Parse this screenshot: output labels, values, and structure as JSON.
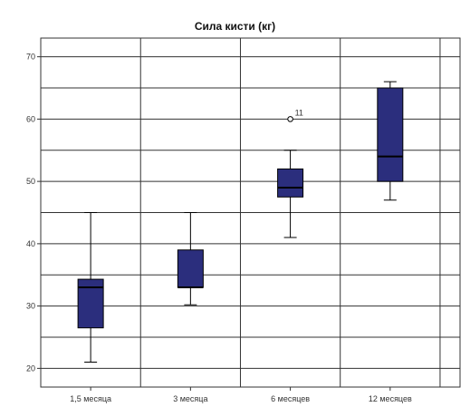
{
  "chart_data": {
    "type": "boxplot",
    "title": "Сила кисти (кг)",
    "xlabel": "",
    "ylabel": "",
    "ylim": [
      17,
      73
    ],
    "yticks": [
      20,
      30,
      40,
      50,
      60,
      70
    ],
    "grid": true,
    "box_color": "#2b2e7d",
    "categories": [
      "1,5 месяца",
      "3 месяца",
      "6 месяцев",
      "12 месяцев"
    ],
    "boxes": [
      {
        "category": "1,5 месяца",
        "min": 21,
        "q1": 26.5,
        "median": 33,
        "q3": 34.3,
        "max": 45,
        "outliers": []
      },
      {
        "category": "3 месяца",
        "min": 30.2,
        "q1": 33,
        "median": 33,
        "q3": 39,
        "max": 45,
        "outliers": []
      },
      {
        "category": "6 месяцев",
        "min": 41,
        "q1": 47.5,
        "median": 49,
        "q3": 52,
        "max": 55,
        "outliers": [
          {
            "value": 60,
            "label": "11"
          }
        ]
      },
      {
        "category": "12 месяцев",
        "min": 47,
        "q1": 50,
        "median": 54,
        "q3": 65,
        "max": 66,
        "outliers": []
      }
    ]
  }
}
